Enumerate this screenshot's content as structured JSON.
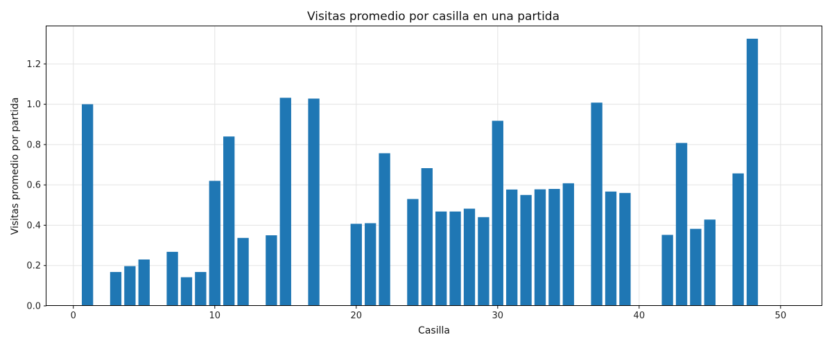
{
  "chart_data": {
    "type": "bar",
    "title": "Visitas promedio por casilla en una partida",
    "xlabel": "Casilla",
    "ylabel": "Visitas promedio por partida",
    "xlim": [
      -1.9,
      52.9
    ],
    "ylim": [
      0,
      1.39
    ],
    "xticks": [
      0,
      10,
      20,
      30,
      40,
      50
    ],
    "yticks": [
      0.0,
      0.2,
      0.4,
      0.6,
      0.8,
      1.0,
      1.2
    ],
    "ytick_labels": [
      "0.0",
      "0.2",
      "0.4",
      "0.6",
      "0.8",
      "1.0",
      "1.2"
    ],
    "grid": true,
    "bar_color": "#1f77b4",
    "x": [
      1,
      3,
      4,
      5,
      7,
      8,
      9,
      10,
      11,
      12,
      14,
      15,
      17,
      20,
      21,
      22,
      24,
      25,
      26,
      27,
      28,
      29,
      30,
      31,
      32,
      33,
      34,
      35,
      37,
      38,
      39,
      42,
      43,
      44,
      45,
      47,
      48
    ],
    "values": [
      1.0,
      0.168,
      0.197,
      0.23,
      0.268,
      0.142,
      0.168,
      0.62,
      0.84,
      0.337,
      0.35,
      1.032,
      1.028,
      0.407,
      0.41,
      0.757,
      0.53,
      0.683,
      0.468,
      0.468,
      0.482,
      0.44,
      0.918,
      0.577,
      0.55,
      0.578,
      0.58,
      0.608,
      1.008,
      0.567,
      0.56,
      0.352,
      0.808,
      0.382,
      0.428,
      0.657,
      1.325
    ]
  }
}
